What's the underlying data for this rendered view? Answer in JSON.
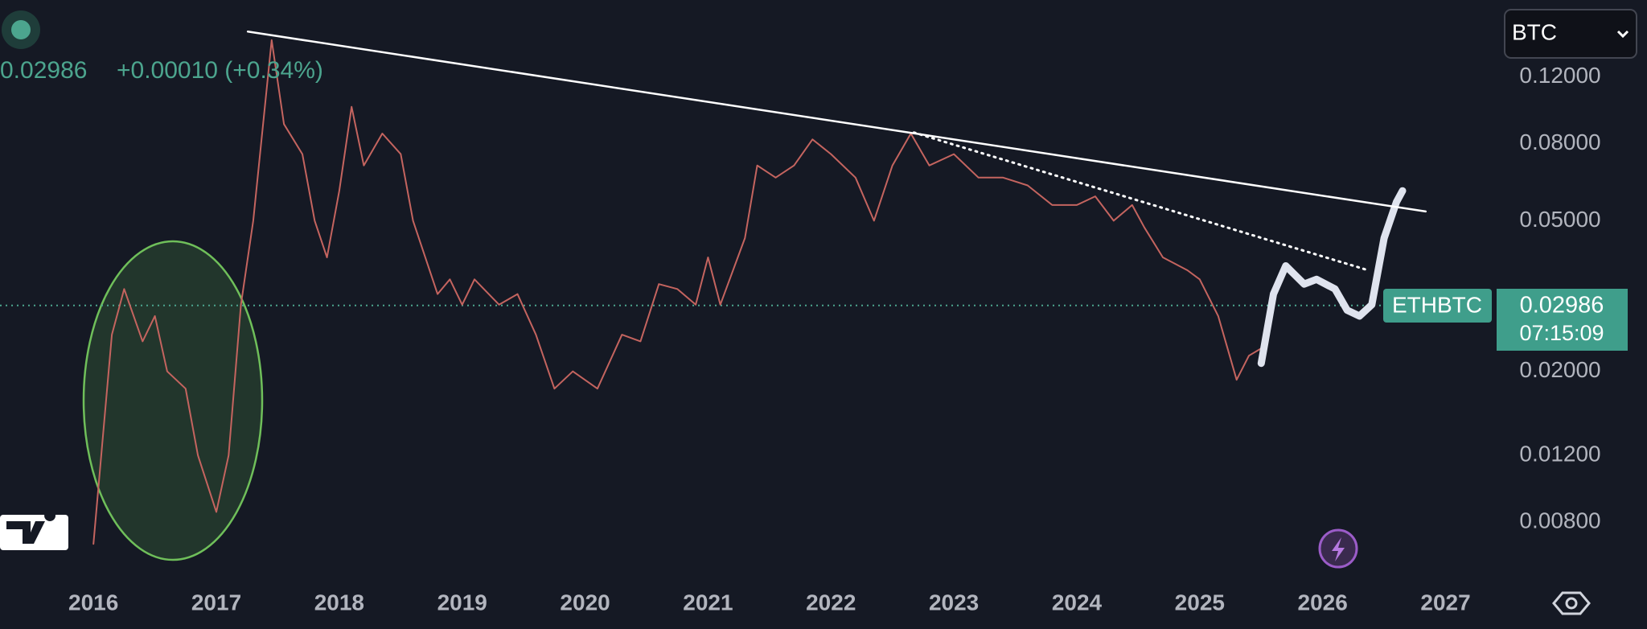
{
  "chart_data": {
    "type": "line",
    "symbol": "ETHBTC",
    "quote": "BTC",
    "last_price": {
      "value": 0.02986,
      "label": "0.02986"
    },
    "change": "+0.00010 (+0.34%)",
    "countdown": "07:15:09",
    "log_scale": true,
    "grid": false,
    "xlim": [
      2015.24,
      2027.376
    ],
    "xticks": [
      2016,
      2017,
      2018,
      2019,
      2020,
      2021,
      2022,
      2023,
      2024,
      2025,
      2026,
      2027
    ],
    "ylim": [
      0.00579,
      0.1915
    ],
    "yticks": [
      {
        "value": 0.008,
        "label": "0.00800"
      },
      {
        "value": 0.012,
        "label": "0.01200"
      },
      {
        "value": 0.02,
        "label": "0.02000"
      },
      {
        "value": 0.05,
        "label": "0.05000"
      },
      {
        "value": 0.08,
        "label": "0.08000"
      },
      {
        "value": 0.12,
        "label": "0.12000"
      }
    ],
    "series": [
      {
        "color": "#c4645f",
        "width": 2,
        "x": [
          2016.0,
          2016.15,
          2016.25,
          2016.4,
          2016.5,
          2016.6,
          2016.75,
          2016.85,
          2017.0,
          2017.1,
          2017.2,
          2017.3,
          2017.45,
          2017.55,
          2017.7,
          2017.8,
          2017.9,
          2018.0,
          2018.1,
          2018.2,
          2018.35,
          2018.5,
          2018.6,
          2018.8,
          2018.9,
          2019.0,
          2019.1,
          2019.3,
          2019.45,
          2019.6,
          2019.75,
          2019.9,
          2020.1,
          2020.3,
          2020.45,
          2020.6,
          2020.75,
          2020.9,
          2021.0,
          2021.1,
          2021.3,
          2021.4,
          2021.55,
          2021.7,
          2021.85,
          2022.0,
          2022.2,
          2022.35,
          2022.5,
          2022.65,
          2022.8,
          2023.0,
          2023.2,
          2023.4,
          2023.6,
          2023.8,
          2024.0,
          2024.15,
          2024.3,
          2024.45,
          2024.55,
          2024.7,
          2024.9,
          2025.0,
          2025.15,
          2025.3,
          2025.4,
          2025.5
        ],
        "values": [
          0.007,
          0.025,
          0.033,
          0.024,
          0.028,
          0.02,
          0.018,
          0.012,
          0.0085,
          0.012,
          0.03,
          0.05,
          0.15,
          0.09,
          0.075,
          0.05,
          0.04,
          0.06,
          0.1,
          0.07,
          0.085,
          0.075,
          0.05,
          0.032,
          0.035,
          0.03,
          0.035,
          0.03,
          0.032,
          0.025,
          0.018,
          0.02,
          0.018,
          0.025,
          0.024,
          0.034,
          0.033,
          0.03,
          0.04,
          0.03,
          0.045,
          0.07,
          0.065,
          0.07,
          0.082,
          0.075,
          0.065,
          0.05,
          0.07,
          0.085,
          0.07,
          0.075,
          0.065,
          0.065,
          0.062,
          0.055,
          0.055,
          0.058,
          0.05,
          0.055,
          0.048,
          0.04,
          0.037,
          0.035,
          0.028,
          0.019,
          0.022,
          0.023
        ]
      },
      {
        "color": "#dfe3ee",
        "width": 9,
        "x": [
          2025.5,
          2025.6,
          2025.7,
          2025.85,
          2025.95,
          2026.1,
          2026.2,
          2026.3,
          2026.4,
          2026.5,
          2026.6,
          2026.65
        ],
        "values": [
          0.021,
          0.032,
          0.038,
          0.034,
          0.035,
          0.033,
          0.029,
          0.028,
          0.03,
          0.045,
          0.056,
          0.06
        ]
      }
    ],
    "trendlines": [
      {
        "style": "solid",
        "color": "#ffffff",
        "x": [
          2017.256,
          2026.838
        ],
        "values": [
          0.158,
          0.0529
        ]
      },
      {
        "style": "dotted",
        "color": "#ffffff",
        "x": [
          2022.675,
          2026.37
        ],
        "values": [
          0.0855,
          0.037
        ]
      }
    ]
  }
}
